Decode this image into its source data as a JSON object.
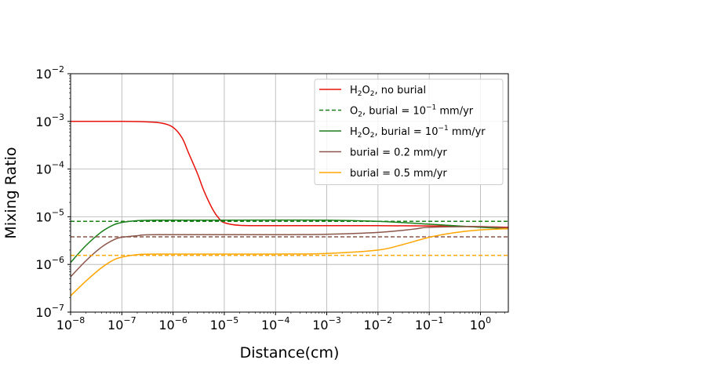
{
  "chart_data": {
    "type": "line",
    "xlabel": "Distance(cm)",
    "ylabel": "Mixing Ratio",
    "xscale": "log",
    "yscale": "log",
    "xlim": [
      1e-08,
      3.5
    ],
    "ylim": [
      1e-07,
      0.01
    ],
    "grid": true,
    "legend_position": "top-right",
    "x_ticks": [
      {
        "value": 1e-08,
        "base": "10",
        "exp": "−8"
      },
      {
        "value": 1e-07,
        "base": "10",
        "exp": "−7"
      },
      {
        "value": 1e-06,
        "base": "10",
        "exp": "−6"
      },
      {
        "value": 1e-05,
        "base": "10",
        "exp": "−5"
      },
      {
        "value": 0.0001,
        "base": "10",
        "exp": "−4"
      },
      {
        "value": 0.001,
        "base": "10",
        "exp": "−3"
      },
      {
        "value": 0.01,
        "base": "10",
        "exp": "−2"
      },
      {
        "value": 0.1,
        "base": "10",
        "exp": "−1"
      },
      {
        "value": 1,
        "base": "10",
        "exp": "0"
      }
    ],
    "y_ticks": [
      {
        "value": 1e-07,
        "base": "10",
        "exp": "−7"
      },
      {
        "value": 1e-06,
        "base": "10",
        "exp": "−6"
      },
      {
        "value": 1e-05,
        "base": "10",
        "exp": "−5"
      },
      {
        "value": 0.0001,
        "base": "10",
        "exp": "−4"
      },
      {
        "value": 0.001,
        "base": "10",
        "exp": "−3"
      },
      {
        "value": 0.01,
        "base": "10",
        "exp": "−2"
      }
    ],
    "series": [
      {
        "id": "h2o2-no-burial",
        "name": "H2O2, no burial",
        "legend": [
          {
            "t": "H"
          },
          {
            "t": "2",
            "sub": true
          },
          {
            "t": "O"
          },
          {
            "t": "2",
            "sub": true
          },
          {
            "t": ", no burial"
          }
        ],
        "color": "#e8120c",
        "style": "solid",
        "points": [
          [
            1e-08,
            0.001
          ],
          [
            1e-07,
            0.001
          ],
          [
            3e-07,
            0.00098
          ],
          [
            6e-07,
            0.00092
          ],
          [
            1e-06,
            0.00075
          ],
          [
            1.5e-06,
            0.00045
          ],
          [
            2e-06,
            0.00022
          ],
          [
            3e-06,
            8e-05
          ],
          [
            4e-06,
            3.5e-05
          ],
          [
            6e-06,
            1.4e-05
          ],
          [
            8e-06,
            9e-06
          ],
          [
            1e-05,
            7.5e-06
          ],
          [
            2e-05,
            6.6e-06
          ],
          [
            0.0001,
            6.5e-06
          ],
          [
            0.001,
            6.5e-06
          ],
          [
            0.01,
            6.5e-06
          ],
          [
            0.1,
            6.4e-06
          ],
          [
            1,
            6.2e-06
          ],
          [
            3.5,
            6e-06
          ]
        ]
      },
      {
        "id": "o2-burial-dashed",
        "name": "O2, burial = 10^-1 mm/yr",
        "legend": [
          {
            "t": "O"
          },
          {
            "t": "2",
            "sub": true
          },
          {
            "t": ", burial = 10"
          },
          {
            "t": "−1",
            "sup": true
          },
          {
            "t": " mm/yr"
          }
        ],
        "color": "#1a7f1a",
        "style": "dashed",
        "points": [
          [
            1e-08,
            8e-06
          ],
          [
            3.5,
            8e-06
          ]
        ]
      },
      {
        "id": "h2o2-burial-01",
        "name": "H2O2, burial = 10^-1 mm/yr",
        "legend": [
          {
            "t": "H"
          },
          {
            "t": "2",
            "sub": true
          },
          {
            "t": "O"
          },
          {
            "t": "2",
            "sub": true
          },
          {
            "t": ", burial = 10"
          },
          {
            "t": "−1",
            "sup": true
          },
          {
            "t": " mm/yr"
          }
        ],
        "color": "#1a7f1a",
        "style": "solid",
        "points": [
          [
            1e-08,
            1.1e-06
          ],
          [
            2e-08,
            2.5e-06
          ],
          [
            4e-08,
            4.8e-06
          ],
          [
            7e-08,
            6.8e-06
          ],
          [
            1e-07,
            7.6e-06
          ],
          [
            2e-07,
            8.3e-06
          ],
          [
            5e-07,
            8.5e-06
          ],
          [
            1e-05,
            8.5e-06
          ],
          [
            0.001,
            8.5e-06
          ],
          [
            0.01,
            8e-06
          ],
          [
            0.1,
            7e-06
          ],
          [
            1,
            6e-06
          ],
          [
            3.5,
            5.7e-06
          ]
        ]
      },
      {
        "id": "burial-02",
        "name": "burial = 0.2 mm/yr",
        "legend": [
          {
            "t": "burial = 0.2 mm/yr"
          }
        ],
        "color": "#8c564b",
        "style": "solid",
        "points": [
          [
            1e-08,
            5.5e-07
          ],
          [
            2e-08,
            1.2e-06
          ],
          [
            4e-08,
            2.3e-06
          ],
          [
            7e-08,
            3.3e-06
          ],
          [
            1e-07,
            3.7e-06
          ],
          [
            2e-07,
            4e-06
          ],
          [
            5e-07,
            4.2e-06
          ],
          [
            0.0001,
            4.2e-06
          ],
          [
            0.001,
            4.3e-06
          ],
          [
            0.01,
            4.7e-06
          ],
          [
            0.05,
            5.5e-06
          ],
          [
            0.1,
            6e-06
          ],
          [
            1,
            6.2e-06
          ],
          [
            3.5,
            5.8e-06
          ]
        ]
      },
      {
        "id": "burial-02-dashed",
        "name": "",
        "legend": [],
        "color": "#8c564b",
        "style": "dashed",
        "points": [
          [
            1e-08,
            3.8e-06
          ],
          [
            3.5,
            3.8e-06
          ]
        ]
      },
      {
        "id": "burial-05",
        "name": "burial = 0.5 mm/yr",
        "legend": [
          {
            "t": "burial = 0.5 mm/yr"
          }
        ],
        "color": "#ffa500",
        "style": "solid",
        "points": [
          [
            1e-08,
            2.2e-07
          ],
          [
            2e-08,
            4.5e-07
          ],
          [
            4e-08,
            8.5e-07
          ],
          [
            7e-08,
            1.25e-06
          ],
          [
            1e-07,
            1.42e-06
          ],
          [
            2e-07,
            1.6e-06
          ],
          [
            5e-07,
            1.65e-06
          ],
          [
            0.0001,
            1.65e-06
          ],
          [
            0.001,
            1.7e-06
          ],
          [
            0.01,
            2e-06
          ],
          [
            0.03,
            2.6e-06
          ],
          [
            0.1,
            3.7e-06
          ],
          [
            0.3,
            4.6e-06
          ],
          [
            1,
            5.3e-06
          ],
          [
            3.5,
            5.6e-06
          ]
        ]
      },
      {
        "id": "burial-05-dashed",
        "name": "",
        "legend": [],
        "color": "#ffa500",
        "style": "dashed",
        "points": [
          [
            1e-08,
            1.55e-06
          ],
          [
            3.5,
            1.55e-06
          ]
        ]
      }
    ]
  }
}
